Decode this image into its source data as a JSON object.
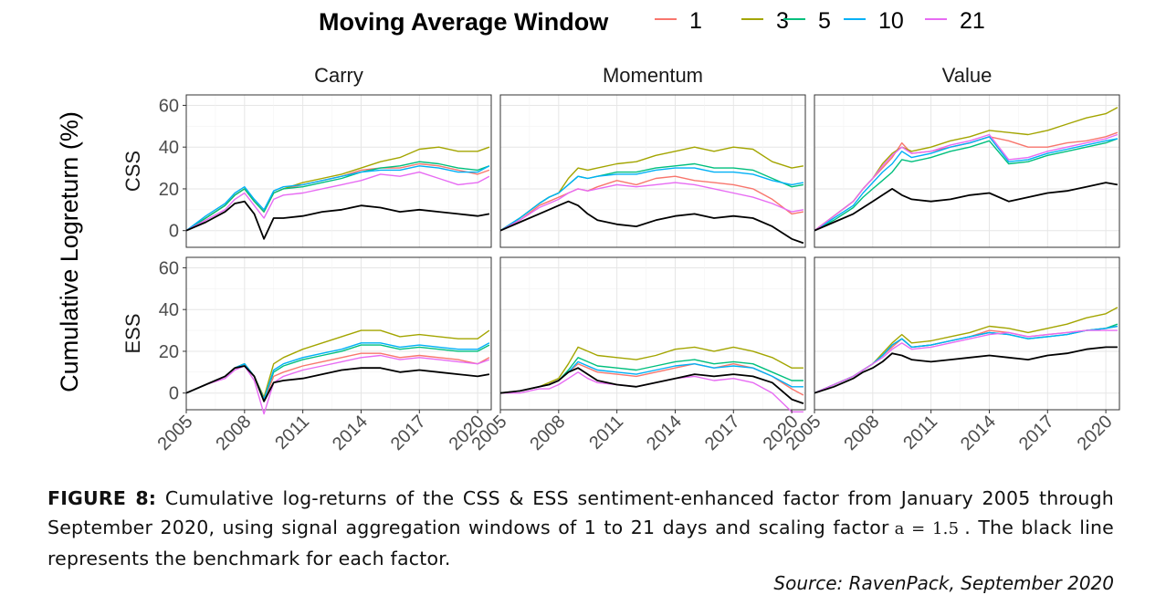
{
  "legend": {
    "title": "Moving Average Window",
    "items": [
      {
        "label": "1",
        "color": "#F8766D"
      },
      {
        "label": "3",
        "color": "#A3A500"
      },
      {
        "label": "5",
        "color": "#00BF7D"
      },
      {
        "label": "10",
        "color": "#00B0F6"
      },
      {
        "label": "21",
        "color": "#E76BF3"
      }
    ],
    "placement": "top"
  },
  "caption": {
    "label": "FIGURE 8:",
    "text_a": "Cumulative log-returns of the CSS & ESS sentiment-enhanced factor from January 2005 through September 2020, using signal aggregation windows of 1 to 21 days and scaling factor",
    "equation": "a = 1.5",
    "text_b": ". The black line represents the benchmark for each factor."
  },
  "source": "Source: RavenPack, September 2020",
  "chart_data": {
    "type": "line",
    "facet_columns": [
      "Carry",
      "Momentum",
      "Value"
    ],
    "facet_rows": [
      "CSS",
      "ESS"
    ],
    "ylabel": "Cumulative Logreturn (%)",
    "xlabel": "",
    "xlim": [
      2005,
      2020.7
    ],
    "ylim": [
      -8,
      65
    ],
    "yticks": [
      0,
      20,
      40,
      60
    ],
    "xticks": [
      "2005",
      "2008",
      "2011",
      "2014",
      "2017",
      "2020"
    ],
    "xtick_values": [
      2005,
      2008,
      2011,
      2014,
      2017,
      2020
    ],
    "grid": true,
    "benchmark_color": "#000000",
    "x": [
      2005,
      2006,
      2007,
      2007.5,
      2008,
      2008.5,
      2009,
      2009.5,
      2010,
      2011,
      2012,
      2013,
      2014,
      2015,
      2016,
      2017,
      2018,
      2019,
      2020,
      2020.6
    ],
    "panels": [
      {
        "column": "Carry",
        "row": "CSS",
        "series": [
          {
            "name": "1",
            "values": [
              0,
              6,
              12,
              17,
              20,
              14,
              9,
              18,
              20,
              22,
              24,
              26,
              29,
              30,
              30,
              32,
              31,
              29,
              27,
              29
            ]
          },
          {
            "name": "3",
            "values": [
              0,
              6,
              12,
              17,
              20,
              14,
              9,
              18,
              20,
              23,
              25,
              27,
              30,
              33,
              35,
              39,
              40,
              38,
              38,
              40
            ]
          },
          {
            "name": "5",
            "values": [
              0,
              6,
              12,
              17,
              20,
              14,
              9,
              18,
              20,
              21,
              23,
              25,
              28,
              30,
              31,
              33,
              32,
              30,
              29,
              31
            ]
          },
          {
            "name": "10",
            "values": [
              0,
              7,
              13,
              18,
              21,
              15,
              10,
              19,
              21,
              22,
              24,
              26,
              28,
              29,
              29,
              31,
              30,
              28,
              28,
              31
            ]
          },
          {
            "name": "21",
            "values": [
              0,
              5,
              10,
              15,
              18,
              12,
              6,
              15,
              17,
              18,
              20,
              22,
              24,
              27,
              26,
              28,
              25,
              22,
              23,
              26
            ]
          },
          {
            "name": "benchmark",
            "values": [
              0,
              4,
              9,
              13,
              14,
              8,
              -4,
              6,
              6,
              7,
              9,
              10,
              12,
              11,
              9,
              10,
              9,
              8,
              7,
              8
            ]
          }
        ]
      },
      {
        "column": "Momentum",
        "row": "CSS",
        "series": [
          {
            "name": "1",
            "values": [
              0,
              5,
              12,
              14,
              16,
              18,
              20,
              19,
              21,
              24,
              22,
              25,
              26,
              24,
              23,
              22,
              20,
              15,
              8,
              9
            ]
          },
          {
            "name": "3",
            "values": [
              0,
              6,
              13,
              16,
              18,
              25,
              30,
              29,
              30,
              32,
              33,
              36,
              38,
              40,
              38,
              40,
              39,
              33,
              30,
              31
            ]
          },
          {
            "name": "5",
            "values": [
              0,
              6,
              13,
              16,
              18,
              22,
              26,
              25,
              26,
              28,
              28,
              30,
              31,
              32,
              30,
              30,
              29,
              25,
              21,
              22
            ]
          },
          {
            "name": "10",
            "values": [
              0,
              6,
              13,
              16,
              18,
              22,
              26,
              25,
              26,
              27,
              27,
              29,
              30,
              30,
              28,
              28,
              27,
              24,
              22,
              23
            ]
          },
          {
            "name": "21",
            "values": [
              0,
              5,
              11,
              13,
              15,
              18,
              20,
              19,
              20,
              22,
              21,
              22,
              23,
              22,
              20,
              18,
              16,
              13,
              9,
              10
            ]
          },
          {
            "name": "benchmark",
            "values": [
              0,
              4,
              8,
              10,
              12,
              14,
              12,
              8,
              5,
              3,
              2,
              5,
              7,
              8,
              6,
              7,
              6,
              2,
              -4,
              -6
            ]
          }
        ]
      },
      {
        "column": "Value",
        "row": "CSS",
        "series": [
          {
            "name": "1",
            "values": [
              0,
              7,
              14,
              20,
              25,
              30,
              35,
              42,
              37,
              38,
              40,
              42,
              45,
              43,
              40,
              40,
              42,
              43,
              45,
              47
            ]
          },
          {
            "name": "3",
            "values": [
              0,
              7,
              14,
              20,
              25,
              32,
              37,
              40,
              38,
              40,
              43,
              45,
              48,
              47,
              46,
              48,
              51,
              54,
              56,
              59
            ]
          },
          {
            "name": "5",
            "values": [
              0,
              5,
              11,
              16,
              20,
              24,
              28,
              34,
              33,
              35,
              38,
              40,
              43,
              32,
              33,
              36,
              38,
              40,
              42,
              44
            ]
          },
          {
            "name": "10",
            "values": [
              0,
              6,
              12,
              18,
              23,
              28,
              32,
              38,
              35,
              37,
              40,
              42,
              45,
              33,
              34,
              37,
              39,
              41,
              43,
              44
            ]
          },
          {
            "name": "21",
            "values": [
              0,
              7,
              14,
              20,
              25,
              31,
              36,
              40,
              37,
              38,
              41,
              43,
              46,
              34,
              35,
              38,
              40,
              42,
              44,
              46
            ]
          },
          {
            "name": "benchmark",
            "values": [
              0,
              4,
              8,
              11,
              14,
              17,
              20,
              17,
              15,
              14,
              15,
              17,
              18,
              14,
              16,
              18,
              19,
              21,
              23,
              22
            ]
          }
        ]
      },
      {
        "column": "Carry",
        "row": "ESS",
        "series": [
          {
            "name": "1",
            "values": [
              0,
              4,
              8,
              12,
              14,
              8,
              -4,
              8,
              10,
              13,
              15,
              17,
              19,
              19,
              17,
              18,
              17,
              16,
              14,
              17
            ]
          },
          {
            "name": "3",
            "values": [
              0,
              4,
              8,
              12,
              14,
              8,
              -2,
              14,
              17,
              21,
              24,
              27,
              30,
              30,
              27,
              28,
              27,
              26,
              26,
              30
            ]
          },
          {
            "name": "5",
            "values": [
              0,
              4,
              8,
              12,
              14,
              8,
              -3,
              10,
              13,
              16,
              18,
              20,
              23,
              23,
              21,
              22,
              21,
              20,
              20,
              23
            ]
          },
          {
            "name": "10",
            "values": [
              0,
              4,
              8,
              12,
              14,
              8,
              -3,
              11,
              14,
              17,
              19,
              21,
              24,
              24,
              22,
              23,
              22,
              21,
              21,
              24
            ]
          },
          {
            "name": "21",
            "values": [
              0,
              4,
              7,
              11,
              13,
              6,
              -10,
              5,
              8,
              11,
              13,
              15,
              17,
              18,
              16,
              17,
              16,
              15,
              14,
              16
            ]
          },
          {
            "name": "benchmark",
            "values": [
              0,
              4,
              8,
              12,
              13,
              8,
              -4,
              5,
              6,
              7,
              9,
              11,
              12,
              12,
              10,
              11,
              10,
              9,
              8,
              9
            ]
          }
        ]
      },
      {
        "column": "Momentum",
        "row": "ESS",
        "series": [
          {
            "name": "1",
            "values": [
              0,
              1,
              3,
              4,
              6,
              10,
              14,
              12,
              10,
              9,
              8,
              10,
              12,
              14,
              12,
              14,
              12,
              8,
              2,
              -1
            ]
          },
          {
            "name": "3",
            "values": [
              0,
              1,
              3,
              5,
              7,
              14,
              22,
              20,
              18,
              17,
              16,
              18,
              21,
              22,
              20,
              22,
              20,
              17,
              12,
              12
            ]
          },
          {
            "name": "5",
            "values": [
              0,
              1,
              3,
              4,
              6,
              11,
              17,
              15,
              13,
              12,
              11,
              13,
              15,
              16,
              14,
              15,
              14,
              10,
              6,
              6
            ]
          },
          {
            "name": "10",
            "values": [
              0,
              1,
              3,
              4,
              6,
              10,
              15,
              13,
              11,
              10,
              9,
              11,
              13,
              14,
              12,
              13,
              12,
              8,
              3,
              3
            ]
          },
          {
            "name": "21",
            "values": [
              0,
              0,
              2,
              2,
              4,
              7,
              10,
              7,
              5,
              4,
              3,
              5,
              7,
              8,
              6,
              7,
              5,
              0,
              -9,
              -9
            ]
          },
          {
            "name": "benchmark",
            "values": [
              0,
              1,
              3,
              4,
              6,
              10,
              12,
              9,
              6,
              4,
              3,
              5,
              7,
              9,
              8,
              9,
              8,
              5,
              -3,
              -5
            ]
          }
        ]
      },
      {
        "column": "Value",
        "row": "ESS",
        "series": [
          {
            "name": "1",
            "values": [
              0,
              4,
              8,
              11,
              14,
              18,
              22,
              26,
              22,
              23,
              25,
              27,
              30,
              29,
              27,
              28,
              29,
              30,
              31,
              32
            ]
          },
          {
            "name": "3",
            "values": [
              0,
              4,
              8,
              11,
              14,
              19,
              24,
              28,
              24,
              25,
              27,
              29,
              32,
              31,
              29,
              31,
              33,
              36,
              38,
              41
            ]
          },
          {
            "name": "5",
            "values": [
              0,
              4,
              8,
              11,
              14,
              18,
              23,
              26,
              22,
              23,
              25,
              27,
              29,
              28,
              26,
              27,
              28,
              30,
              31,
              33
            ]
          },
          {
            "name": "10",
            "values": [
              0,
              4,
              8,
              11,
              14,
              18,
              23,
              26,
              22,
              23,
              25,
              27,
              29,
              28,
              26,
              27,
              28,
              30,
              31,
              32
            ]
          },
          {
            "name": "21",
            "values": [
              0,
              4,
              8,
              11,
              14,
              17,
              21,
              24,
              21,
              22,
              24,
              26,
              28,
              29,
              27,
              28,
              29,
              30,
              30,
              30
            ]
          },
          {
            "name": "benchmark",
            "values": [
              0,
              3,
              7,
              10,
              12,
              15,
              19,
              18,
              16,
              15,
              16,
              17,
              18,
              17,
              16,
              18,
              19,
              21,
              22,
              22
            ]
          }
        ]
      }
    ]
  }
}
